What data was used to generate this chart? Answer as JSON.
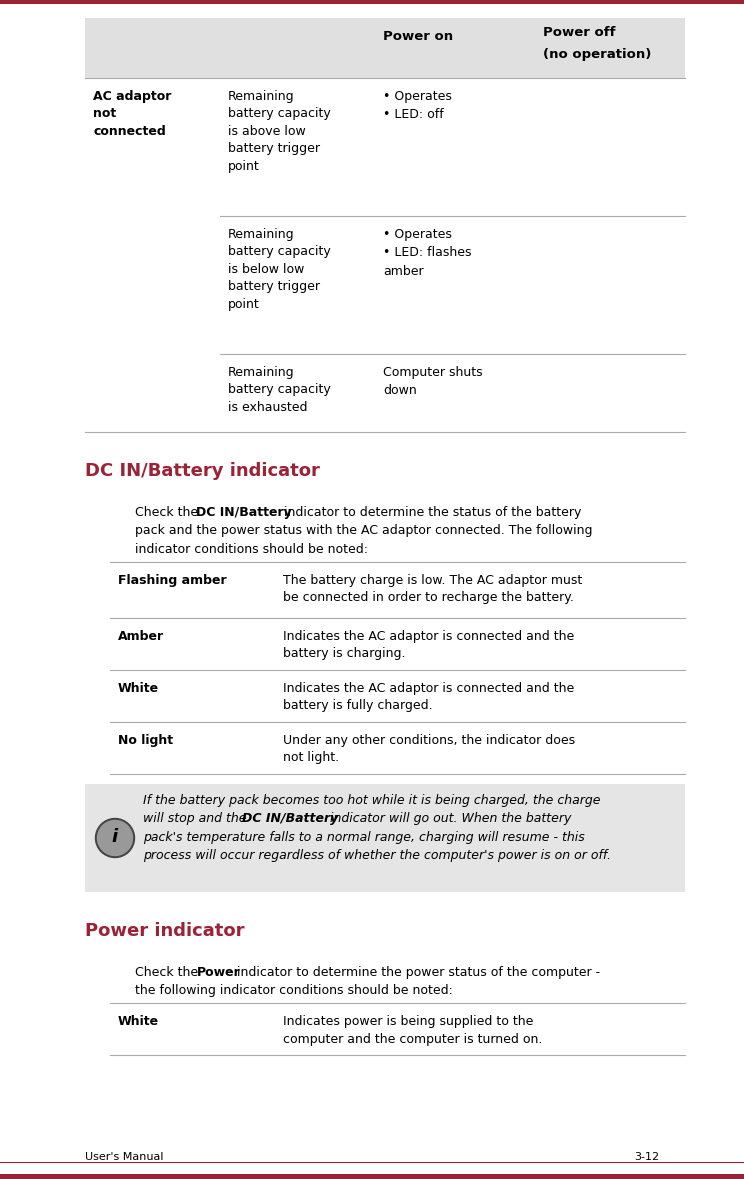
{
  "page_bg": "#ffffff",
  "top_bar_color": "#9b2335",
  "bottom_bar_color": "#9b2335",
  "heading_color": "#9b2335",
  "text_color": "#000000",
  "table1_header_bg": "#e0e0e0",
  "note_bg": "#e5e5e5",
  "dc_heading": "DC IN/Battery indicator",
  "dc_table_rows": [
    {
      "label": "Flashing amber",
      "desc": "The battery charge is low. The AC adaptor must\nbe connected in order to recharge the battery."
    },
    {
      "label": "Amber",
      "desc": "Indicates the AC adaptor is connected and the\nbattery is charging."
    },
    {
      "label": "White",
      "desc": "Indicates the AC adaptor is connected and the\nbattery is fully charged."
    },
    {
      "label": "No light",
      "desc": "Under any other conditions, the indicator does\nnot light."
    }
  ],
  "power_heading": "Power indicator",
  "power_table_rows": [
    {
      "label": "White",
      "desc": "Indicates power is being supplied to the\ncomputer and the computer is turned on."
    }
  ],
  "footer_left": "User's Manual",
  "footer_right": "3-12",
  "dpi": 100,
  "fig_w": 7.44,
  "fig_h": 11.79
}
